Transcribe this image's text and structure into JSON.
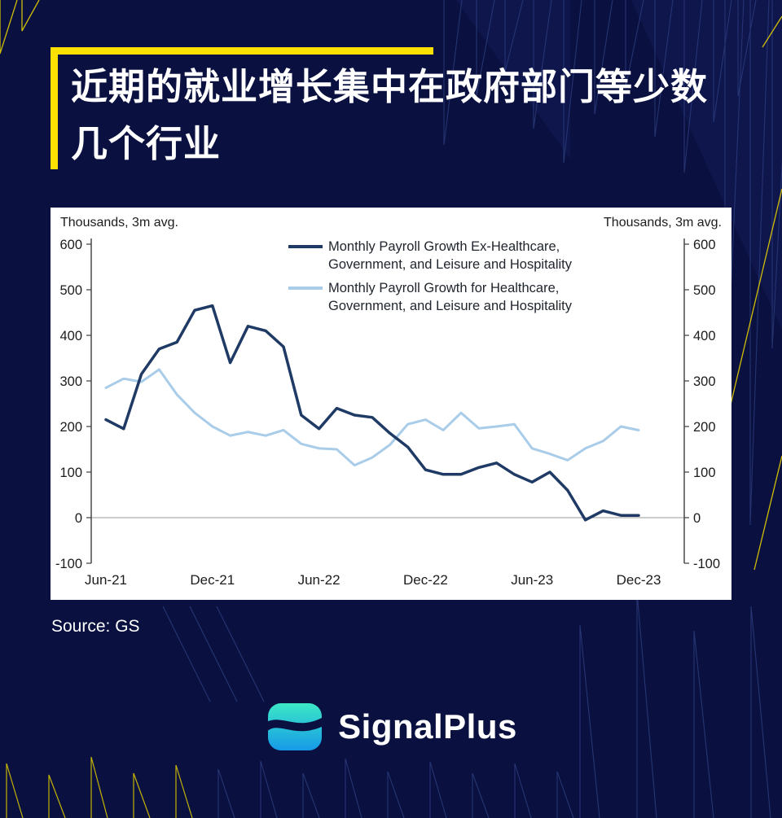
{
  "page": {
    "title_line1": "近期的就业增长集中在政府部门等少数",
    "title_line2": "几个行业",
    "source": "Source: GS",
    "brand": "SignalPlus"
  },
  "colors": {
    "background": "#0a1140",
    "accent_yellow": "#ffe100",
    "series_dark": "#1f3a64",
    "series_light": "#a9cce9",
    "chart_text": "#1c1c1c",
    "logo_teal": "#3ce8c6",
    "logo_blue": "#169ae8"
  },
  "chart_data": {
    "type": "line",
    "unit_label_left": "Thousands, 3m avg.",
    "unit_label_right": "Thousands, 3m avg.",
    "ylim": [
      -100,
      600
    ],
    "yticks": [
      600,
      500,
      400,
      300,
      200,
      100,
      0,
      -100
    ],
    "xtick_labels": [
      "Jun-21",
      "Dec-21",
      "Jun-22",
      "Dec-22",
      "Jun-23",
      "Dec-23"
    ],
    "grid": false,
    "zero_line": true,
    "legend_position": "top-center",
    "x": [
      "Jun-21",
      "Jul-21",
      "Aug-21",
      "Sep-21",
      "Oct-21",
      "Nov-21",
      "Dec-21",
      "Jan-22",
      "Feb-22",
      "Mar-22",
      "Apr-22",
      "May-22",
      "Jun-22",
      "Jul-22",
      "Aug-22",
      "Sep-22",
      "Oct-22",
      "Nov-22",
      "Dec-22",
      "Jan-23",
      "Feb-23",
      "Mar-23",
      "Apr-23",
      "May-23",
      "Jun-23",
      "Jul-23",
      "Aug-23",
      "Sep-23",
      "Oct-23",
      "Nov-23",
      "Dec-23"
    ],
    "series": [
      {
        "name": "Monthly Payroll Growth Ex-Healthcare, Government, and Leisure and Hospitality",
        "color": "#1f3a64",
        "width": 3.5,
        "values": [
          215,
          195,
          315,
          370,
          385,
          455,
          465,
          340,
          420,
          410,
          375,
          225,
          195,
          240,
          225,
          220,
          185,
          155,
          105,
          95,
          95,
          110,
          120,
          95,
          78,
          100,
          60,
          -5,
          15,
          5,
          5
        ]
      },
      {
        "name": "Monthly Payroll Growth for Healthcare, Government, and Leisure and Hospitality",
        "color": "#a9cce9",
        "width": 3,
        "values": [
          285,
          305,
          298,
          325,
          270,
          230,
          200,
          180,
          188,
          180,
          192,
          162,
          152,
          150,
          115,
          132,
          160,
          205,
          215,
          192,
          230,
          196,
          200,
          205,
          152,
          140,
          126,
          152,
          168,
          200,
          192
        ]
      }
    ]
  }
}
